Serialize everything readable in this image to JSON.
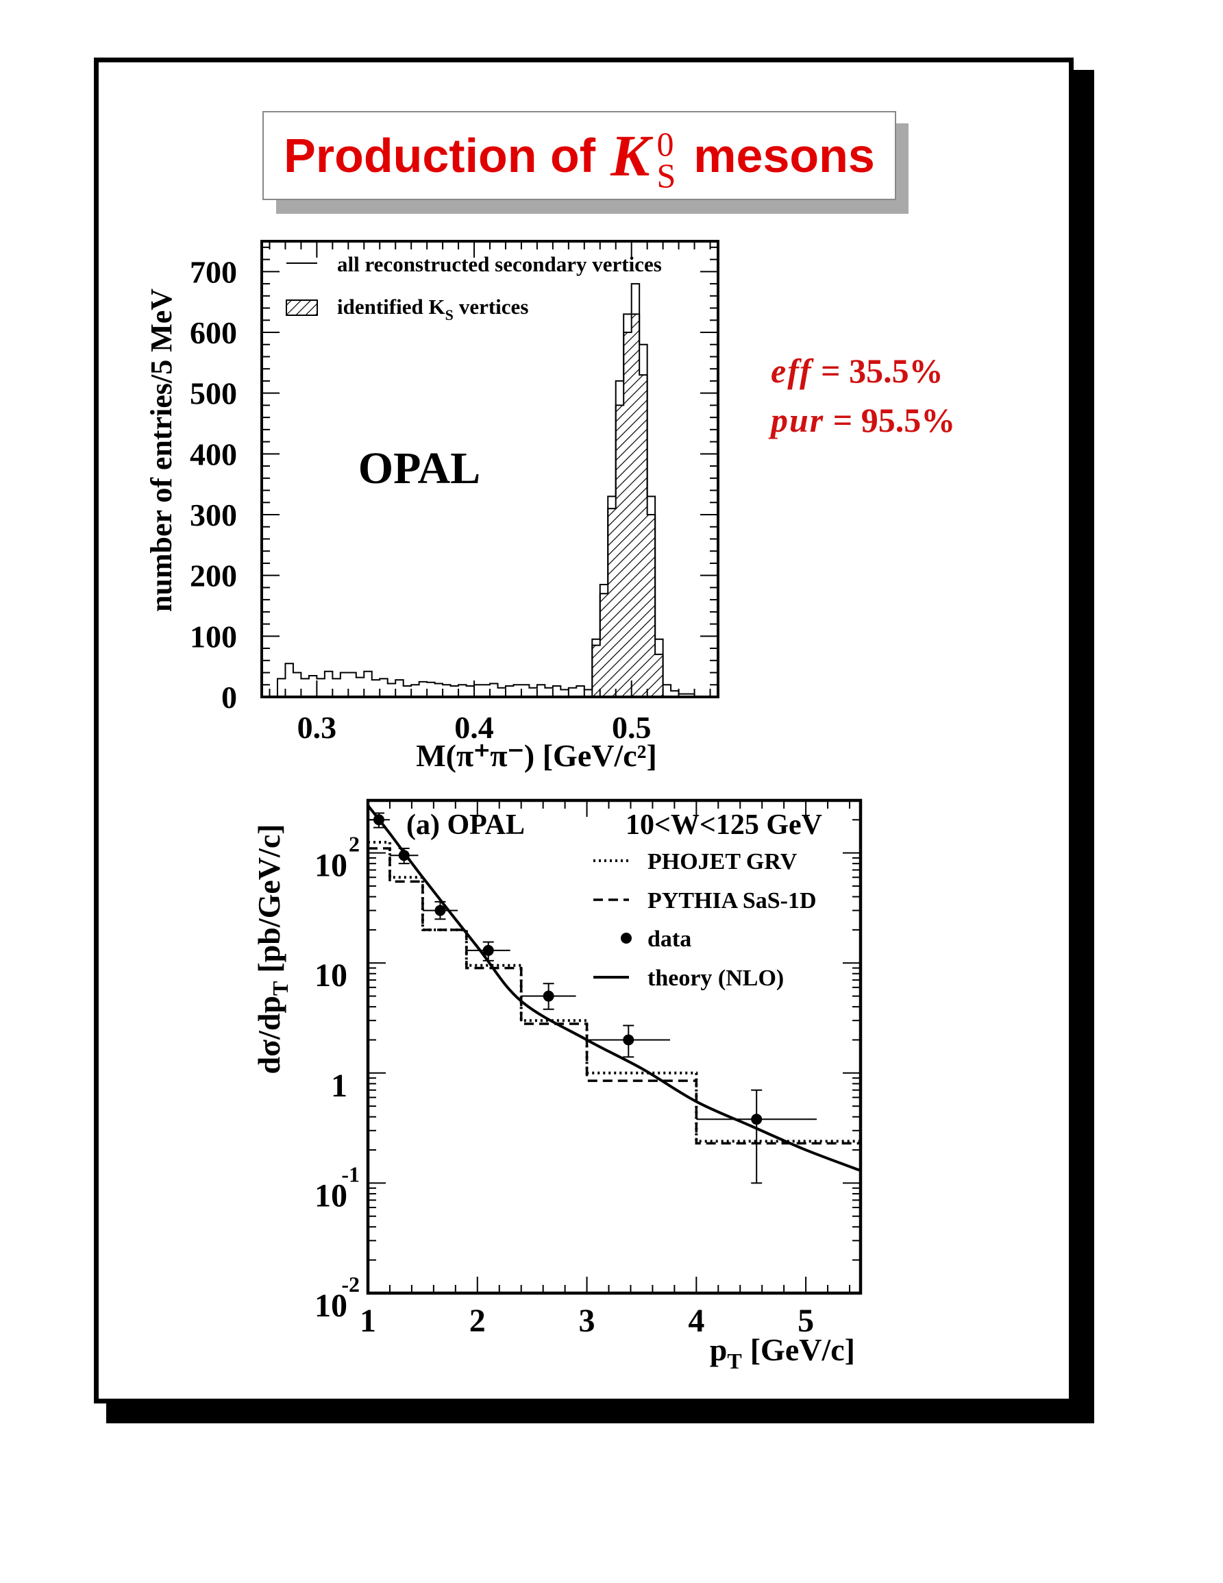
{
  "title": {
    "prefix": "Production of",
    "symbol": "K",
    "sup": "0",
    "sub": "S",
    "suffix": "mesons"
  },
  "efficiency": {
    "eff_label": "eff",
    "eff_value": "= 35.5%",
    "pur_label": "pur",
    "pur_value": "= 95.5%"
  },
  "colors": {
    "title": "#e00000",
    "annotation": "#d01010",
    "ink": "#000000"
  },
  "chart_data": [
    {
      "type": "bar",
      "subtype": "histogram",
      "label": "OPAL",
      "xlabel": "M(π⁺π⁻) [GeV/c²]",
      "ylabel": "number of entries/5 MeV",
      "xlim": [
        0.265,
        0.555
      ],
      "ylim": [
        0,
        750
      ],
      "bin_width": 0.005,
      "xticks": [
        0.3,
        0.4,
        0.5
      ],
      "yticks": [
        0,
        100,
        200,
        300,
        400,
        500,
        600,
        700
      ],
      "legend": {
        "placement": "top-left",
        "entries": [
          "all reconstructed secondary vertices",
          "identified K",
          "vertices"
        ],
        "entry_sub": "S"
      },
      "series": [
        {
          "name": "all reconstructed secondary vertices",
          "style": "open",
          "bin_start": 0.275,
          "values": [
            30,
            55,
            40,
            30,
            35,
            30,
            42,
            30,
            40,
            40,
            32,
            42,
            28,
            30,
            22,
            28,
            18,
            20,
            25,
            24,
            22,
            20,
            18,
            20,
            18,
            20,
            20,
            22,
            15,
            18,
            20,
            20,
            15,
            20,
            15,
            18,
            12,
            15,
            18,
            12,
            95,
            185,
            330,
            520,
            630,
            680,
            580,
            330,
            95,
            20,
            10,
            5,
            5,
            0
          ]
        },
        {
          "name": "identified K vertices",
          "style": "hatched",
          "bin_start": 0.475,
          "values": [
            85,
            170,
            310,
            480,
            600,
            630,
            530,
            300,
            70
          ]
        }
      ]
    },
    {
      "type": "line",
      "panel_label": "(a) OPAL",
      "range_label": "10<W<125 GeV",
      "xlabel": "p",
      "xlabel_sub": "T",
      "xlabel_unit": "[GeV/c]",
      "ylabel": "dσ/dp",
      "ylabel_sub": "T",
      "ylabel_unit": "[pb/GeV/c]",
      "xlim": [
        1,
        5.5
      ],
      "ylim": [
        0.01,
        300
      ],
      "yscale": "log",
      "xticks": [
        1,
        2,
        3,
        4,
        5
      ],
      "ytick_labels": [
        {
          "value": 100,
          "base": "10",
          "exp": "2"
        },
        {
          "value": 10,
          "base": "10",
          "exp": ""
        },
        {
          "value": 1,
          "base": "1",
          "exp": ""
        },
        {
          "value": 0.1,
          "base": "10",
          "exp": "-1"
        },
        {
          "value": 0.01,
          "base": "10",
          "exp": "-2"
        }
      ],
      "legend": {
        "placement": "top-right",
        "entries": [
          "PHOJET GRV",
          "PYTHIA SaS-1D",
          "data",
          "theory (NLO)"
        ]
      },
      "series": [
        {
          "name": "PHOJET GRV",
          "style": "dotted-step",
          "edges": [
            1.0,
            1.2,
            1.5,
            1.9,
            2.4,
            3.0,
            4.0,
            5.5
          ],
          "values": [
            125,
            60,
            20,
            9.5,
            3.0,
            1.0,
            0.24
          ]
        },
        {
          "name": "PYTHIA SaS-1D",
          "style": "dashed-step",
          "edges": [
            1.0,
            1.2,
            1.5,
            1.9,
            2.4,
            3.0,
            4.0,
            5.5
          ],
          "values": [
            110,
            55,
            20,
            9.0,
            2.8,
            0.85,
            0.23
          ]
        },
        {
          "name": "data",
          "style": "points",
          "x": [
            1.1,
            1.33,
            1.66,
            2.1,
            2.65,
            3.38,
            4.55
          ],
          "y": [
            200,
            95,
            30,
            13,
            5,
            2,
            0.38
          ],
          "xerr": [
            0.1,
            0.13,
            0.16,
            0.2,
            0.25,
            0.38,
            0.55
          ],
          "ylo": [
            170,
            80,
            25,
            10.5,
            3.8,
            1.4,
            0.1
          ],
          "yhi": [
            230,
            110,
            36,
            15.5,
            6.5,
            2.7,
            0.7
          ]
        },
        {
          "name": "theory (NLO)",
          "style": "solid",
          "x": [
            1.0,
            1.2,
            1.5,
            2.0,
            2.4,
            3.0,
            3.5,
            4.0,
            4.5,
            5.0,
            5.5
          ],
          "y": [
            270,
            150,
            60,
            14,
            4.5,
            2.0,
            1.1,
            0.55,
            0.33,
            0.2,
            0.13
          ]
        }
      ]
    }
  ]
}
